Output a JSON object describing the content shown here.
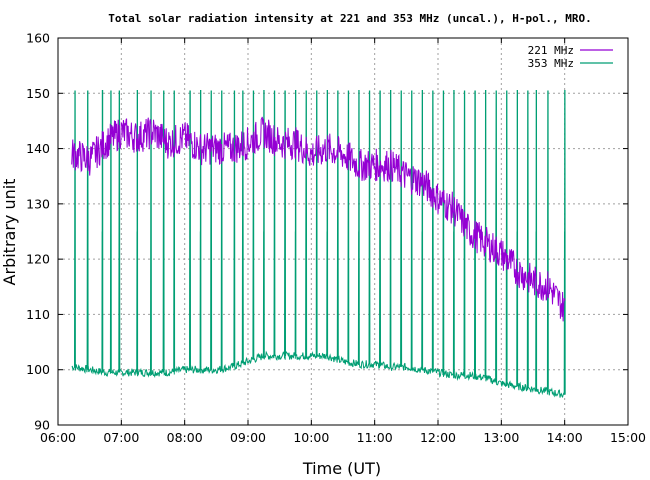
{
  "chart_data": {
    "type": "line",
    "title": "Total solar radiation intensity at 221 and 353 MHz (uncal.), H-pol., MRO.",
    "xlabel": "Time (UT)",
    "ylabel": "Arbitrary unit",
    "x_unit": "UT time (hh:mm)",
    "xlim": [
      "06:00",
      "15:00"
    ],
    "ylim": [
      90,
      160
    ],
    "x_ticks": [
      "06:00",
      "07:00",
      "08:00",
      "09:00",
      "10:00",
      "11:00",
      "12:00",
      "13:00",
      "14:00",
      "15:00"
    ],
    "y_ticks": [
      90,
      100,
      110,
      120,
      130,
      140,
      150,
      160
    ],
    "grid": true,
    "legend_position": "top-right",
    "series": [
      {
        "name": "221 MHz",
        "color": "#9400d3",
        "x": [
          "06:15",
          "06:30",
          "06:45",
          "07:00",
          "07:15",
          "07:30",
          "07:45",
          "08:00",
          "08:15",
          "08:30",
          "08:45",
          "09:00",
          "09:15",
          "09:30",
          "09:45",
          "10:00",
          "10:15",
          "10:30",
          "10:45",
          "11:00",
          "11:15",
          "11:30",
          "11:45",
          "12:00",
          "12:15",
          "12:30",
          "12:45",
          "13:00",
          "13:15",
          "13:30",
          "13:45",
          "14:00"
        ],
        "y": [
          139,
          138,
          141,
          143,
          142,
          143,
          141,
          142,
          140,
          140,
          140,
          141,
          143,
          141,
          141,
          139,
          140,
          139,
          137,
          137,
          137,
          135,
          134,
          131,
          129,
          125,
          123,
          121,
          118,
          116,
          115,
          111
        ]
      },
      {
        "name": "353 MHz",
        "color": "#009e73",
        "x": [
          "06:15",
          "06:30",
          "06:45",
          "07:00",
          "07:15",
          "07:30",
          "07:45",
          "08:00",
          "08:15",
          "08:30",
          "08:45",
          "09:00",
          "09:15",
          "09:30",
          "09:45",
          "10:00",
          "10:15",
          "10:30",
          "10:45",
          "11:00",
          "11:15",
          "11:30",
          "11:45",
          "12:00",
          "12:15",
          "12:30",
          "12:45",
          "13:00",
          "13:15",
          "13:30",
          "13:45",
          "14:00"
        ],
        "y": [
          100.5,
          100,
          99.5,
          99.5,
          99.5,
          99.5,
          99.5,
          100,
          100,
          100,
          100.5,
          101.5,
          102.5,
          102.5,
          102.5,
          102.5,
          102.5,
          101.5,
          101,
          101,
          100.5,
          100.5,
          100,
          99.5,
          99,
          99,
          98.5,
          97.5,
          97,
          96.5,
          96,
          95.5
        ]
      }
    ],
    "calibration_spikes_353": {
      "times": [
        "06:16",
        "06:28",
        "06:42",
        "06:50",
        "06:58",
        "07:15",
        "07:28",
        "07:40",
        "07:50",
        "08:05",
        "08:15",
        "08:25",
        "08:35",
        "08:47",
        "08:55",
        "09:05",
        "09:15",
        "09:25",
        "09:35",
        "09:45",
        "09:55",
        "10:05",
        "10:15",
        "10:25",
        "10:35",
        "10:45",
        "10:55",
        "11:05",
        "11:15",
        "11:25",
        "11:35",
        "11:45",
        "11:55",
        "12:05",
        "12:15",
        "12:25",
        "12:35",
        "12:45",
        "12:55",
        "13:05",
        "13:15",
        "13:25",
        "13:33",
        "13:44",
        "14:00"
      ],
      "high": [
        150.5,
        150.5,
        150.5,
        150.5,
        150.5,
        150.5,
        150.5,
        150.5,
        150.5,
        150.5,
        150.5,
        150.5,
        150.5,
        150.5,
        150.5,
        150.5,
        150.5,
        150.5,
        150.5,
        150.5,
        150.5,
        150.5,
        150.5,
        150.5,
        150.5,
        150.5,
        150.5,
        150.5,
        150.5,
        150.5,
        150.5,
        150.5,
        150.5,
        150.5,
        150.5,
        150.5,
        150.5,
        150.5,
        150.5,
        150.5,
        150.5,
        150.5,
        150.5,
        150.5,
        150.5
      ],
      "mid": [
        125,
        125,
        125,
        125,
        125,
        125,
        125,
        125,
        125,
        125,
        125,
        125,
        125,
        125,
        125,
        125,
        125,
        125,
        125,
        125,
        125,
        125,
        125,
        125,
        125,
        125,
        125,
        125,
        125,
        125,
        125,
        125,
        125,
        125,
        125,
        125,
        125,
        125,
        125,
        125,
        125,
        125,
        125,
        125,
        125
      ]
    }
  }
}
